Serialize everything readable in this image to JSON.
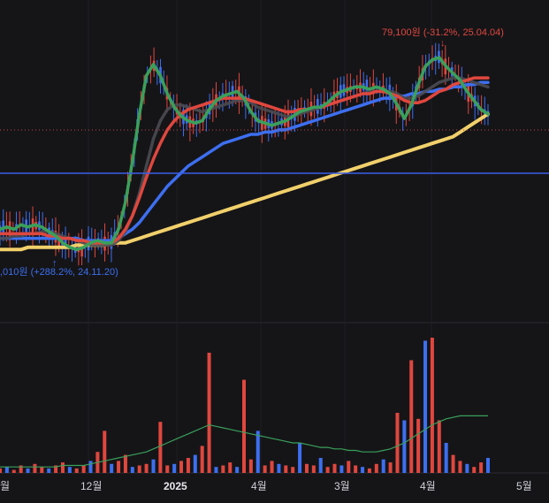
{
  "chart_data": {
    "type": "candlestick",
    "x_tick_labels": [
      "월",
      "12월",
      "2025",
      "4월",
      "3월",
      "4월",
      "5월"
    ],
    "annotations": {
      "high": {
        "text": "79,100원 (-31.2%, 25.04.04)",
        "arrow": "↓"
      },
      "low": {
        "text": ",010원 (+288.2%, 24.11.20)",
        "arrow": "↑"
      }
    },
    "current_price_line": {
      "style": "dotted",
      "color": "#c4453f"
    },
    "horizontal_line": {
      "color": "#3b5ee8"
    },
    "price_series": {
      "ma_short": {
        "color": "#3aa05a",
        "values": [
          92,
          93,
          92,
          94,
          93,
          94,
          93,
          91,
          89,
          86,
          84,
          83,
          84,
          86,
          87,
          86,
          86,
          92,
          104,
          122,
          143,
          160,
          165,
          160,
          152,
          146,
          142,
          140,
          139,
          140,
          145,
          149,
          151,
          152,
          153,
          150,
          144,
          140,
          139,
          138,
          139,
          140,
          142,
          144,
          145,
          146,
          146,
          148,
          151,
          153,
          154,
          155,
          155,
          154,
          155,
          154,
          152,
          147,
          141,
          147,
          156,
          164,
          167,
          168,
          164,
          161,
          158,
          153,
          149,
          145,
          143
        ]
      },
      "ma_mid": {
        "color": "#4a4a52",
        "values": [
          88,
          88,
          89,
          89,
          90,
          90,
          91,
          91,
          90,
          89,
          88,
          87,
          86,
          85,
          85,
          85,
          85,
          87,
          91,
          98,
          108,
          120,
          132,
          140,
          145,
          147,
          147,
          146,
          145,
          144,
          145,
          146,
          147,
          148,
          149,
          149,
          148,
          146,
          145,
          144,
          143,
          142,
          142,
          143,
          144,
          145,
          146,
          147,
          148,
          149,
          150,
          151,
          152,
          153,
          153,
          153,
          153,
          152,
          150,
          150,
          151,
          153,
          155,
          157,
          158,
          159,
          159,
          158,
          157,
          156,
          155
        ]
      },
      "ma_red": {
        "color": "#e0473e",
        "values": [
          90,
          90,
          90,
          90,
          90,
          90,
          90,
          89,
          89,
          88,
          88,
          87,
          87,
          86,
          86,
          86,
          86,
          88,
          92,
          98,
          106,
          115,
          123,
          130,
          136,
          140,
          143,
          145,
          146,
          147,
          148,
          149,
          150,
          150,
          150,
          150,
          149,
          148,
          147,
          146,
          145,
          144,
          144,
          145,
          145,
          146,
          146,
          147,
          148,
          149,
          150,
          151,
          152,
          152,
          153,
          153,
          152,
          151,
          149,
          148,
          148,
          149,
          151,
          153,
          154,
          156,
          157,
          158,
          159,
          159,
          159
        ]
      },
      "ma_blue": {
        "color": "#3d6ff0",
        "values": [
          88,
          88,
          88,
          88,
          88,
          88,
          88,
          88,
          88,
          88,
          88,
          88,
          87,
          87,
          87,
          87,
          87,
          88,
          90,
          92,
          95,
          99,
          103,
          107,
          111,
          114,
          117,
          120,
          122,
          124,
          126,
          128,
          130,
          131,
          132,
          133,
          134,
          134,
          135,
          135,
          136,
          136,
          137,
          138,
          139,
          140,
          141,
          142,
          143,
          144,
          145,
          146,
          147,
          148,
          149,
          150,
          150,
          151,
          151,
          152,
          152,
          153,
          153,
          154,
          154,
          155,
          155,
          156,
          156,
          157,
          157
        ]
      },
      "ma_yellow": {
        "color": "#f1d06b",
        "values": [
          83,
          83,
          83,
          83,
          84,
          84,
          84,
          84,
          84,
          84,
          84,
          85,
          85,
          85,
          85,
          85,
          86,
          86,
          86,
          87,
          88,
          89,
          90,
          91,
          92,
          93,
          94,
          95,
          96,
          97,
          98,
          99,
          100,
          101,
          102,
          103,
          104,
          105,
          106,
          107,
          108,
          109,
          110,
          111,
          112,
          113,
          114,
          115,
          116,
          117,
          118,
          119,
          120,
          121,
          122,
          123,
          124,
          125,
          126,
          127,
          128,
          129,
          130,
          131,
          132,
          133,
          135,
          137,
          139,
          141,
          143
        ]
      }
    },
    "volume_series": {
      "values": [
        3,
        4,
        2,
        5,
        3,
        6,
        4,
        3,
        5,
        7,
        4,
        3,
        5,
        8,
        14,
        28,
        6,
        8,
        12,
        4,
        5,
        6,
        9,
        34,
        5,
        6,
        8,
        10,
        12,
        18,
        80,
        4,
        5,
        7,
        4,
        62,
        9,
        28,
        5,
        8,
        6,
        5,
        4,
        20,
        6,
        5,
        10,
        4,
        6,
        5,
        8,
        5,
        4,
        3,
        6,
        9,
        7,
        40,
        35,
        75,
        36,
        88,
        90,
        35,
        20,
        12,
        8,
        6,
        4,
        7,
        10
      ],
      "colors_up": "#e0473e",
      "colors_down": "#3d6ff0",
      "ma": {
        "color": "#3aa05a",
        "values": [
          4,
          4,
          4,
          4,
          4,
          4,
          4,
          4,
          4,
          5,
          5,
          5,
          5,
          6,
          7,
          8,
          9,
          10,
          11,
          12,
          13,
          14,
          16,
          18,
          20,
          22,
          24,
          26,
          28,
          30,
          32,
          31,
          30,
          29,
          28,
          27,
          26,
          25,
          24,
          23,
          22,
          21,
          20,
          20,
          19,
          18,
          17,
          17,
          16,
          16,
          15,
          15,
          14,
          14,
          14,
          15,
          16,
          18,
          20,
          23,
          26,
          29,
          32,
          34,
          36,
          37,
          38,
          38,
          38,
          38,
          38
        ]
      }
    }
  }
}
